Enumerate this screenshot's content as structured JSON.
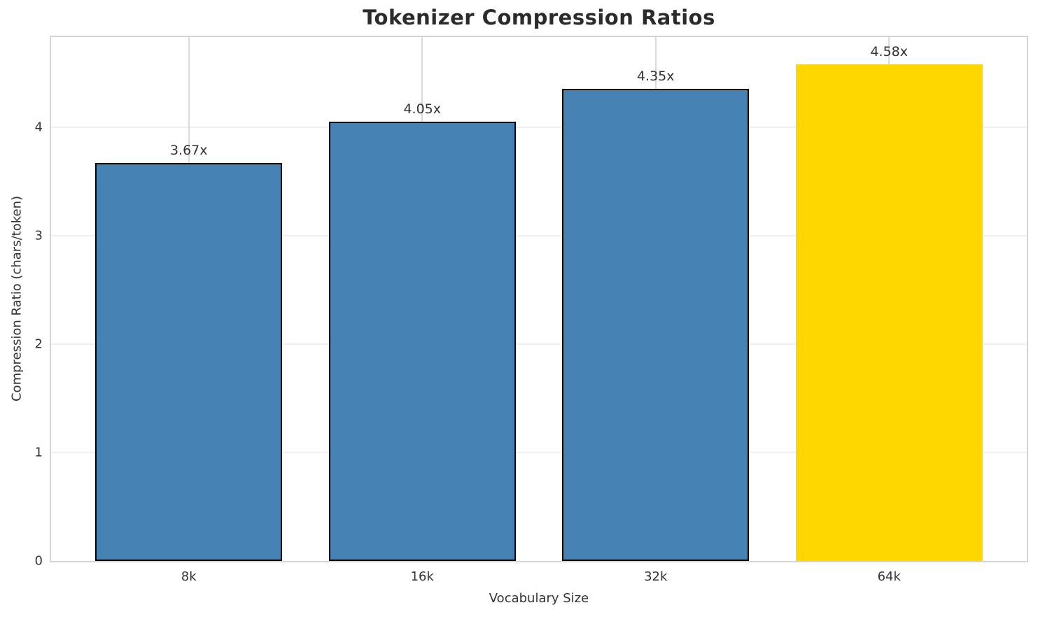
{
  "chart_data": {
    "type": "bar",
    "title": "Tokenizer Compression Ratios",
    "xlabel": "Vocabulary Size",
    "ylabel": "Compression Ratio (chars/token)",
    "categories": [
      "8k",
      "16k",
      "32k",
      "64k"
    ],
    "values": [
      3.67,
      4.05,
      4.35,
      4.58
    ],
    "bar_labels": [
      "3.67x",
      "4.05x",
      "4.35x",
      "4.58x"
    ],
    "yticks": [
      0,
      1,
      2,
      3,
      4
    ],
    "ylim": [
      0,
      4.83
    ],
    "xlim": [
      -0.59,
      3.59
    ],
    "bar_width": 0.8,
    "grid": true,
    "legend": "none",
    "bar_colors": [
      "#4682B4",
      "#4682B4",
      "#4682B4",
      "#FFD700"
    ],
    "bar_edge_colors": [
      "#000000",
      "#000000",
      "#000000",
      "none"
    ],
    "highlight_index": 3
  },
  "colors": {
    "background": "#ffffff",
    "bar_default": "#4682B4",
    "bar_highlight": "#FFD700",
    "bar_edge": "#000000",
    "spine": "#d4d4d4",
    "gridline_h": "#f0f0f0",
    "gridline_v": "#d9d9d9",
    "tick_text": "#333333",
    "title_text": "#2b2b2b"
  }
}
